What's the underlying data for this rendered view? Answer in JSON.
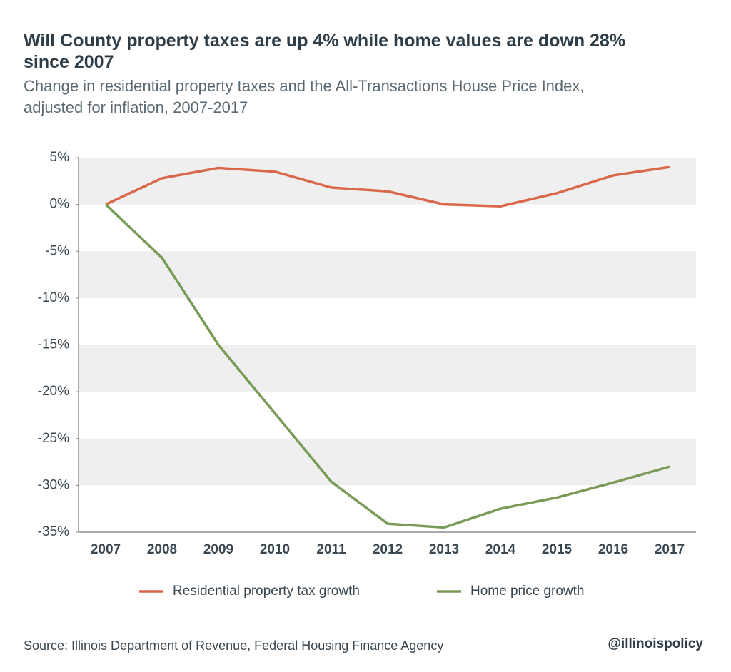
{
  "chart_data": {
    "type": "line",
    "title": "Will County property taxes are up 4% while home values are down 28% since 2007",
    "subtitle": "Change in residential property taxes and the All-Transactions House Price Index, adjusted for inflation, 2007-2017",
    "categories": [
      "2007",
      "2008",
      "2009",
      "2010",
      "2011",
      "2012",
      "2013",
      "2014",
      "2015",
      "2016",
      "2017"
    ],
    "series": [
      {
        "name": "Residential property tax growth",
        "color": "#d9694a",
        "values": [
          0,
          2.8,
          3.9,
          3.5,
          1.8,
          1.4,
          0,
          -0.2,
          1.2,
          3.1,
          4
        ]
      },
      {
        "name": "Home price growth",
        "color": "#7a9a58",
        "values": [
          0,
          -5.7,
          -15,
          -22.3,
          -29.6,
          -34.1,
          -34.5,
          -32.5,
          -31.3,
          -29.7,
          -28
        ]
      }
    ],
    "ylim": [
      -35,
      5
    ],
    "yticks": [
      {
        "value": 5,
        "label": "5%"
      },
      {
        "value": 0,
        "label": "0%"
      },
      {
        "value": -5,
        "label": "-5%"
      },
      {
        "value": -10,
        "label": "-10%"
      },
      {
        "value": -15,
        "label": "-15%"
      },
      {
        "value": -20,
        "label": "-20%"
      },
      {
        "value": -25,
        "label": "-25%"
      },
      {
        "value": -30,
        "label": "-30%"
      },
      {
        "value": -35,
        "label": "-35%"
      }
    ],
    "grid": "bands",
    "legend": "bottom",
    "source": "Source:  Illinois Department of Revenue, Federal Housing Finance Agency",
    "credit": "@illinoispolicy"
  }
}
